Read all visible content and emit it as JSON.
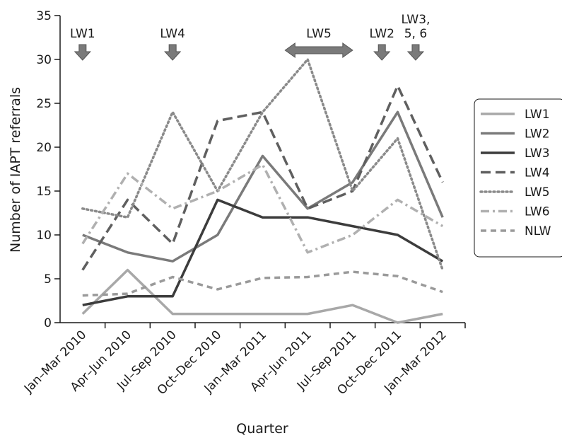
{
  "chart_data": {
    "type": "line",
    "xlabel": "Quarter",
    "ylabel": "Number of IAPT referrals",
    "ylim": [
      0,
      35
    ],
    "yticks": [
      0,
      5,
      10,
      15,
      20,
      25,
      30,
      35
    ],
    "categories": [
      "Jan–Mar 2010",
      "Apr–Jun 2010",
      "Jul–Sep 2010",
      "Oct–Dec 2010",
      "Jan–Mar 2011",
      "Apr–Jun 2011",
      "Jul–Sep 2011",
      "Oct–Dec 2011",
      "Jan–Mar 2012"
    ],
    "legend_position": "right",
    "grid": false,
    "series": [
      {
        "name": "LW1",
        "values": [
          1,
          6,
          1,
          1,
          1,
          1,
          2,
          0,
          1
        ],
        "color": "#a8a8a8",
        "dash": "solid"
      },
      {
        "name": "LW2",
        "values": [
          10,
          8,
          7,
          10,
          19,
          13,
          16,
          24,
          12
        ],
        "color": "#7a7a7a",
        "dash": "solid"
      },
      {
        "name": "LW3",
        "values": [
          2,
          3,
          3,
          14,
          12,
          12,
          11,
          10,
          7
        ],
        "color": "#3c3c3c",
        "dash": "solid"
      },
      {
        "name": "LW4",
        "values": [
          6,
          14,
          9,
          23,
          24,
          13,
          15,
          27,
          16
        ],
        "color": "#5f5f5f",
        "dash": "long-dash"
      },
      {
        "name": "LW5",
        "values": [
          13,
          12,
          24,
          15,
          24,
          30,
          15,
          21,
          6
        ],
        "color": "#8a8a8a",
        "dash": "dotted"
      },
      {
        "name": "LW6",
        "values": [
          9,
          17,
          13,
          15,
          18,
          8,
          10,
          14,
          11
        ],
        "color": "#b0b0b0",
        "dash": "dash-dot"
      },
      {
        "name": "NLW",
        "values": [
          3.1,
          3.3,
          5.2,
          3.8,
          5.1,
          5.2,
          5.8,
          5.3,
          3.5
        ],
        "color": "#9a9a9a",
        "dash": "short-dash"
      }
    ],
    "annotations": [
      {
        "label": "LW1",
        "marker": "down-arrow",
        "x_index": 0
      },
      {
        "label": "LW4",
        "marker": "down-arrow",
        "x_index": 2
      },
      {
        "label": "LW5",
        "marker": "double-arrow",
        "x_from": 4.5,
        "x_to": 6
      },
      {
        "label": "LW2",
        "marker": "down-arrow",
        "x_index": 6.65
      },
      {
        "label": "LW3,",
        "label2": "5, 6",
        "marker": "down-arrow",
        "x_index": 7.4
      }
    ],
    "arrow_color": "#7a7a7a"
  }
}
